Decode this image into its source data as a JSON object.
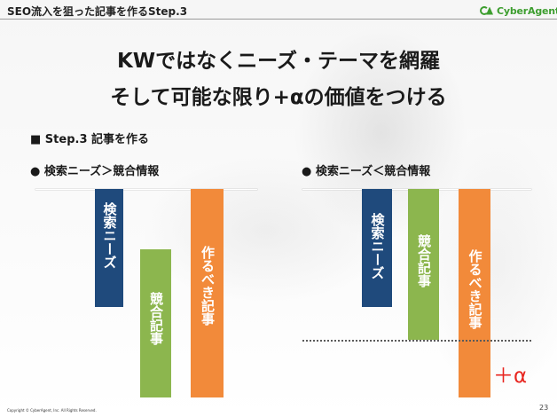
{
  "header": {
    "title": "SEO流入を狙った記事を作るStep.3",
    "logo_text": "CyberAgent"
  },
  "headline": {
    "line1": "KWではなくニーズ・テーマを網羅",
    "line2": "そして可能な限り+αの価値をつける"
  },
  "step_label": "■ Step.3 記事を作る",
  "charts": {
    "left": {
      "label": "● 検索ニーズ＞競合情報",
      "bars": [
        {
          "label": "検索ニーズ",
          "color": "#1f4a7c"
        },
        {
          "label": "競合記事",
          "color": "#8cb64e"
        },
        {
          "label": "作るべき記事",
          "color": "#f28a3a"
        }
      ]
    },
    "right": {
      "label": "● 検索ニーズ＜競合情報",
      "bars": [
        {
          "label": "検索ニーズ",
          "color": "#1f4a7c"
        },
        {
          "label": "競合記事",
          "color": "#8cb64e"
        },
        {
          "label": "作るべき記事",
          "color": "#f28a3a"
        }
      ],
      "plus_alpha_label": "＋α"
    }
  },
  "footer": {
    "copyright": "Copyright © CyberAgent, Inc. All Rights Reserved.",
    "page_number": "23"
  }
}
